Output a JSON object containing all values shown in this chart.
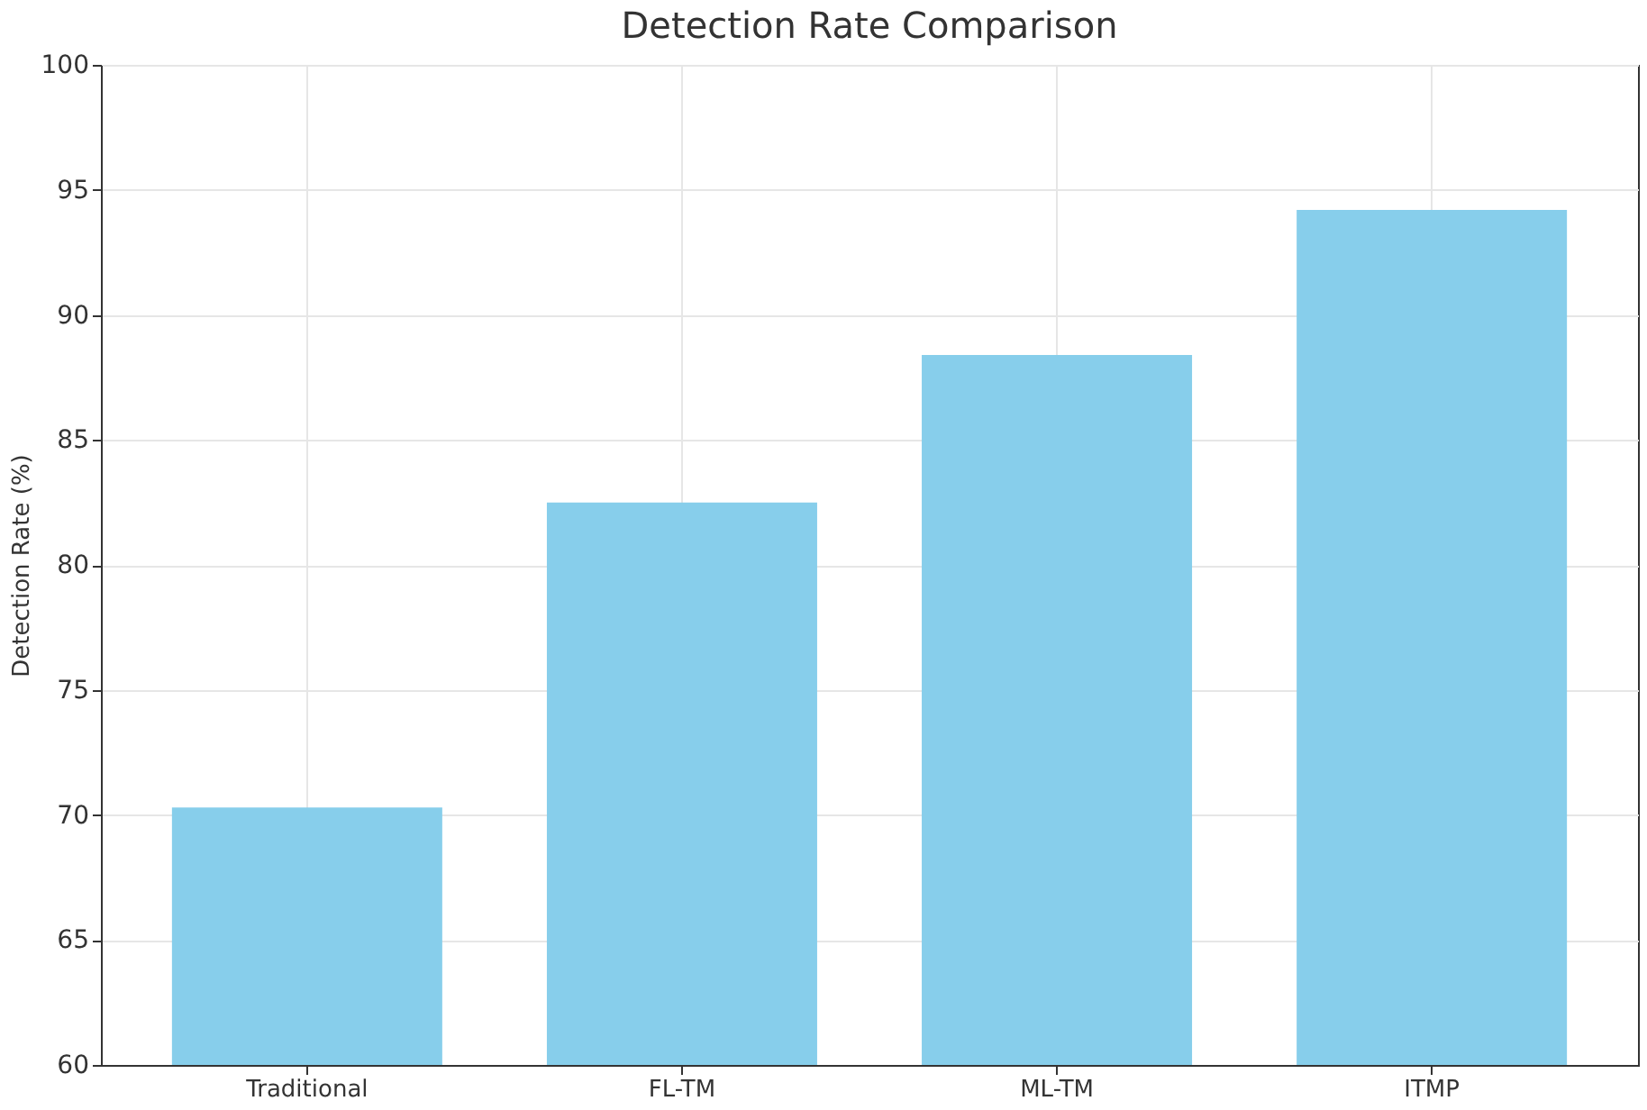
{
  "chart_data": {
    "type": "bar",
    "title": "Detection Rate Comparison",
    "ylabel": "Detection Rate (%)",
    "categories": [
      "Traditional",
      "FL-TM",
      "ML-TM",
      "ITMP"
    ],
    "values": [
      70.3,
      82.5,
      88.4,
      94.2
    ],
    "color": "#87ceeb",
    "ylim": [
      60,
      100
    ],
    "yticks": [
      60,
      65,
      70,
      75,
      80,
      85,
      90,
      95,
      100
    ],
    "grid": true
  }
}
